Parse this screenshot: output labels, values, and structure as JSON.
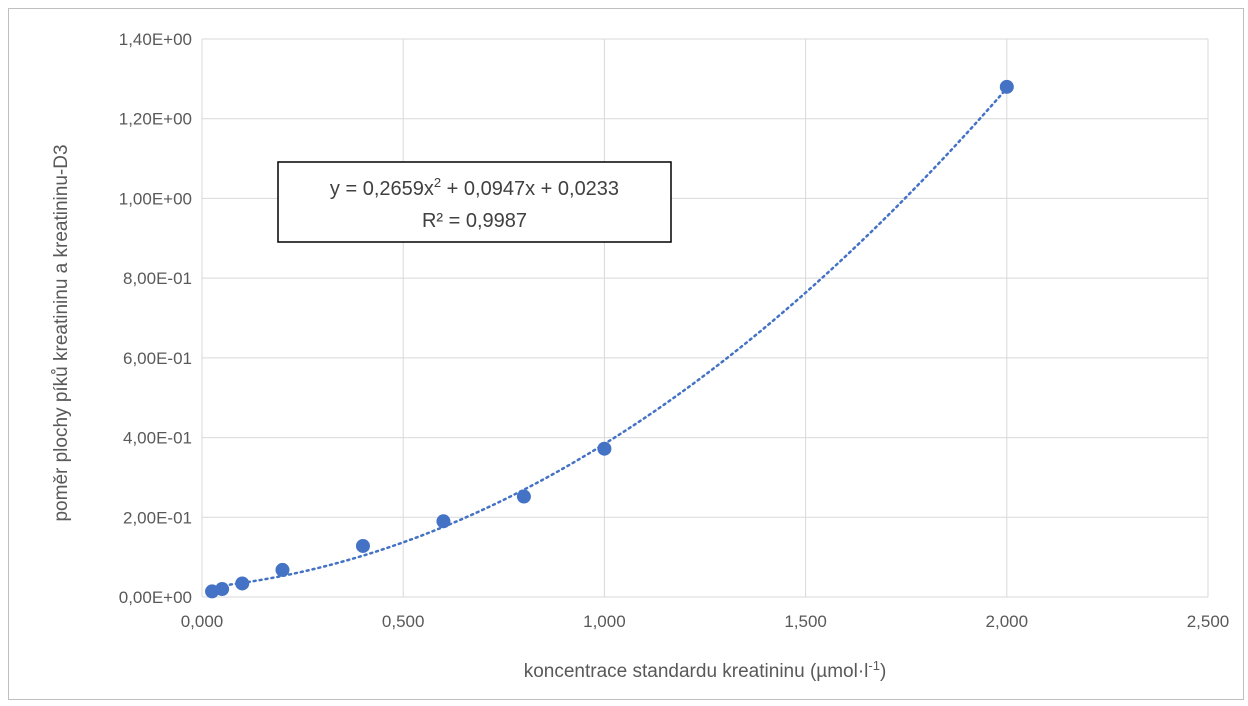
{
  "chart_data": {
    "type": "scatter",
    "title": "",
    "xlabel": "koncentrace standardu kreatininu (µmol·l",
    "xlabel_sup": "-1",
    "xlabel_end": ")",
    "ylabel": "poměr plochy píků kreatininu a kreatininu-D3",
    "xlim": [
      0,
      2.5
    ],
    "ylim": [
      0,
      1.4
    ],
    "x_ticks": [
      0,
      0.5,
      1.0,
      1.5,
      2.0,
      2.5
    ],
    "x_tick_labels": [
      "0,000",
      "0,500",
      "1,000",
      "1,500",
      "2,000",
      "2,500"
    ],
    "y_ticks": [
      0,
      0.2,
      0.4,
      0.6,
      0.8,
      1.0,
      1.2,
      1.4
    ],
    "y_tick_labels": [
      "0,00E+00",
      "2,00E-01",
      "4,00E-01",
      "6,00E-01",
      "8,00E-01",
      "1,00E+00",
      "1,20E+00",
      "1,40E+00"
    ],
    "grid": true,
    "series": [
      {
        "x": [
          0.025,
          0.05,
          0.1,
          0.2,
          0.4,
          0.6,
          0.8,
          1.0,
          2.0
        ],
        "y": [
          0.014,
          0.02,
          0.034,
          0.068,
          0.128,
          0.19,
          0.252,
          0.372,
          1.28
        ],
        "color": "#4472c4"
      }
    ],
    "trendline": {
      "kind": "polynomial",
      "coefficients": [
        0.2659,
        0.0947,
        0.0233
      ],
      "x_range": [
        0.025,
        2.0
      ],
      "color": "#4472c4",
      "style": "dotted"
    },
    "annotation": {
      "line1_pre": "y = 0,2659x",
      "line1_sup": "2",
      "line1_post": " + 0,0947x + 0,0233",
      "line2": "R² = 0,9987"
    }
  }
}
